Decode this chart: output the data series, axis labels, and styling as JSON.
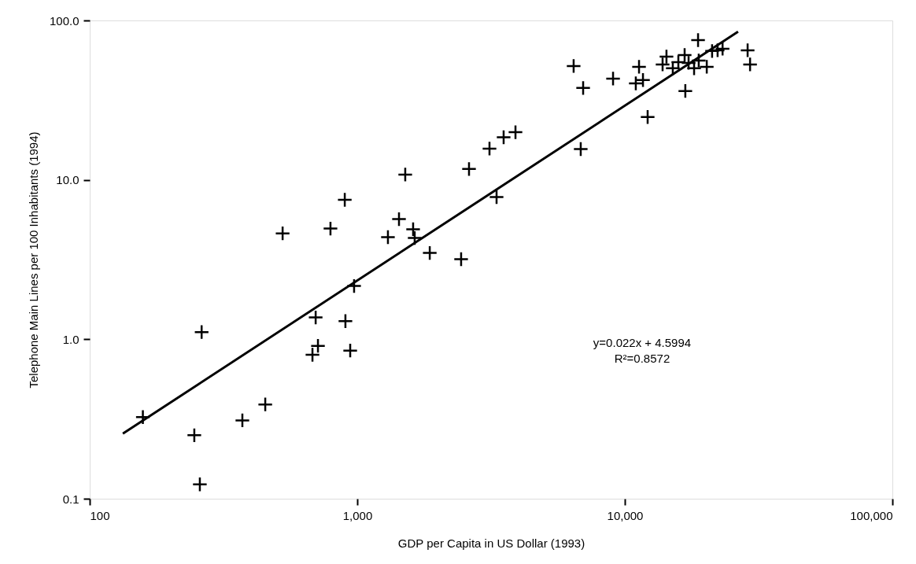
{
  "chart_data": {
    "type": "scatter",
    "xlabel": "GDP per Capita in US Dollar (1993)",
    "ylabel": "Telephone Main Lines per 100 Inhabitants (1994)",
    "log": "xy",
    "xlim": [
      100,
      100000
    ],
    "ylim": [
      0.1,
      100
    ],
    "xticks": [
      100,
      {
        "value": 1000,
        "label": "1,000"
      },
      {
        "value": 10000,
        "label": "10,000"
      },
      {
        "value": 100000,
        "label": "100,000"
      }
    ],
    "yticks": [
      0.1,
      {
        "value": 1,
        "label": "1.0"
      },
      {
        "value": 10,
        "label": "10.0"
      },
      {
        "value": 100,
        "label": "100.0"
      }
    ],
    "grid": false,
    "series": [
      {
        "marker": "cross",
        "color": "#000000",
        "x": [
          158,
          246,
          258,
          262,
          372,
          453,
          526,
          699,
          680,
          713,
          903,
          941,
          973,
          794,
          898,
          1511,
          1432,
          1302,
          1617,
          1639,
          1866,
          2444,
          2616,
          3120,
          3316,
          3524,
          3902,
          6437,
          6985,
          9036,
          11300,
          10990,
          11690,
          16830,
          12170,
          6842,
          18780,
          14310,
          13840,
          15110,
          16730,
          17310,
          18150,
          20240,
          18890,
          21190,
          22220,
          23190,
          28770,
          29380,
          15850
        ],
        "values": [
          0.325,
          0.25,
          0.123,
          1.11,
          0.31,
          0.39,
          4.62,
          1.37,
          0.8,
          0.91,
          1.3,
          0.85,
          2.16,
          4.95,
          7.5,
          10.8,
          5.67,
          4.37,
          4.9,
          4.32,
          3.48,
          3.18,
          11.7,
          15.7,
          7.8,
          18.5,
          19.9,
          51.8,
          37.7,
          43.2,
          51.2,
          40.3,
          42.3,
          36.1,
          24.8,
          15.6,
          75.3,
          59.3,
          53.0,
          50.1,
          60.7,
          54.2,
          50.1,
          51.2,
          56.1,
          64.3,
          65.0,
          66.5,
          65.0,
          53.0,
          54.8
        ]
      },
      {
        "type": "line",
        "marker": "none",
        "color": "#000000",
        "x": [
          133,
          26500
        ],
        "values": [
          0.256,
          85
        ]
      }
    ],
    "annotations": [
      "y=0.022x + 4.5994",
      "R²=0.8572"
    ]
  }
}
